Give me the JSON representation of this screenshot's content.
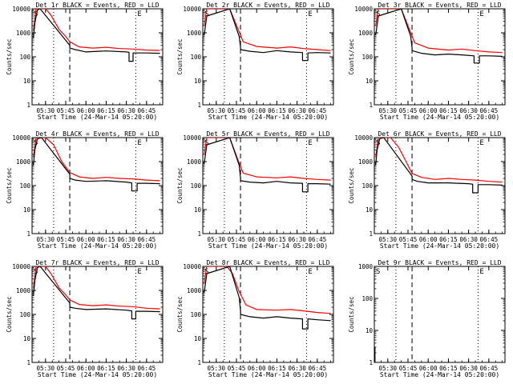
{
  "chart_data": [
    {
      "type": "line",
      "title": "Det 1r BLACK = Events, RED = LLD",
      "xlabel": "Start Time (24-Mar-14 05:20:00)",
      "ylabel": "Counts/sec",
      "yscale": "log",
      "ylim": [
        1,
        10000
      ],
      "xlim": [
        "05:20",
        "06:57"
      ],
      "grid": false,
      "xticks": [
        "05:30",
        "05:45",
        "06:00",
        "06:15",
        "06:30",
        "06:45"
      ],
      "yticks": [
        "1",
        "10",
        "100",
        "1000",
        "10000"
      ],
      "annotations": [
        "S",
        "E"
      ],
      "marker_lines": {
        "dotted": [
          "05:36",
          "06:37"
        ],
        "dashed": [
          "05:48"
        ]
      },
      "series": [
        {
          "color": "#ff0000",
          "x": [
            "05:21",
            "05:23",
            "05:26",
            "05:30",
            "05:34",
            "05:40",
            "05:45",
            "05:48",
            "05:55",
            "06:05",
            "06:15",
            "06:25",
            "06:35",
            "06:45",
            "06:55"
          ],
          "values": [
            1200,
            10000,
            10000,
            10000,
            5500,
            1400,
            700,
            420,
            260,
            230,
            250,
            220,
            210,
            190,
            185
          ]
        },
        {
          "color": "#000000",
          "x": [
            "05:21",
            "05:22",
            "05:24",
            "05:26",
            "05:48",
            "05:48",
            "05:52",
            "06:00",
            "06:15",
            "06:30",
            "06:32",
            "06:32",
            "06:35",
            "06:35",
            "06:45",
            "06:55"
          ],
          "values": [
            600,
            2500,
            9000,
            10000,
            300,
            230,
            200,
            160,
            175,
            160,
            155,
            65,
            65,
            145,
            145,
            140
          ]
        }
      ]
    },
    {
      "type": "line",
      "title": "Det 2r BLACK = Events, RED = LLD",
      "xlabel": "Start Time (24-Mar-14 05:20:00)",
      "ylabel": "Counts/sec",
      "yscale": "log",
      "ylim": [
        1,
        10000
      ],
      "xlim": [
        "05:20",
        "06:57"
      ],
      "grid": false,
      "xticks": [
        "05:30",
        "05:45",
        "06:00",
        "06:15",
        "06:30",
        "06:45"
      ],
      "yticks": [
        "1",
        "10",
        "100",
        "1000",
        "10000"
      ],
      "annotations": [
        "S",
        "E"
      ],
      "marker_lines": {
        "dotted": [
          "05:36",
          "06:37"
        ],
        "dashed": [
          "05:48"
        ]
      },
      "series": [
        {
          "color": "#ff0000",
          "x": [
            "05:21",
            "05:23",
            "05:40",
            "05:46",
            "05:50",
            "06:00",
            "06:15",
            "06:25",
            "06:35",
            "06:45",
            "06:55"
          ],
          "values": [
            2000,
            10000,
            10000,
            1500,
            420,
            270,
            230,
            260,
            220,
            200,
            180
          ]
        },
        {
          "color": "#000000",
          "x": [
            "05:21",
            "05:23",
            "05:40",
            "05:47",
            "05:48",
            "05:48",
            "05:55",
            "06:05",
            "06:15",
            "06:25",
            "06:34",
            "06:34",
            "06:38",
            "06:38",
            "06:45",
            "06:55"
          ],
          "values": [
            800,
            5000,
            10000,
            700,
            250,
            200,
            170,
            150,
            180,
            160,
            150,
            70,
            70,
            145,
            150,
            145
          ]
        }
      ]
    },
    {
      "type": "line",
      "title": "Det 3r BLACK = Events, RED = LLD",
      "xlabel": "Start Time (24-Mar-14 05:20:00)",
      "ylabel": "Counts/sec",
      "yscale": "log",
      "ylim": [
        1,
        10000
      ],
      "xlim": [
        "05:20",
        "06:57"
      ],
      "grid": false,
      "xticks": [
        "05:30",
        "05:45",
        "06:00",
        "06:15",
        "06:30",
        "06:45"
      ],
      "yticks": [
        "1",
        "10",
        "100",
        "1000",
        "10000"
      ],
      "annotations": [
        "S",
        "E"
      ],
      "marker_lines": {
        "dotted": [
          "05:36",
          "06:37"
        ],
        "dashed": [
          "05:48"
        ]
      },
      "series": [
        {
          "color": "#ff0000",
          "x": [
            "05:21",
            "05:23",
            "05:40",
            "05:46",
            "05:50",
            "06:00",
            "06:15",
            "06:25",
            "06:35",
            "06:45",
            "06:55"
          ],
          "values": [
            2000,
            10000,
            10000,
            1400,
            380,
            230,
            190,
            210,
            180,
            160,
            150
          ]
        },
        {
          "color": "#000000",
          "x": [
            "05:21",
            "05:23",
            "05:40",
            "05:47",
            "05:48",
            "05:48",
            "05:55",
            "06:05",
            "06:15",
            "06:25",
            "06:34",
            "06:34",
            "06:38",
            "06:38",
            "06:45",
            "06:55"
          ],
          "values": [
            800,
            5000,
            10000,
            700,
            230,
            180,
            140,
            120,
            130,
            120,
            110,
            55,
            55,
            110,
            110,
            105
          ]
        }
      ]
    },
    {
      "type": "line",
      "title": "Det 4r BLACK = Events, RED = LLD",
      "xlabel": "Start Time (24-Mar-14 05:20:00)",
      "ylabel": "Counts/sec",
      "yscale": "log",
      "ylim": [
        1,
        10000
      ],
      "xlim": [
        "05:20",
        "06:57"
      ],
      "grid": false,
      "xticks": [
        "05:30",
        "05:45",
        "06:00",
        "06:15",
        "06:30",
        "06:45"
      ],
      "yticks": [
        "1",
        "10",
        "100",
        "1000",
        "10000"
      ],
      "annotations": [
        "S",
        "E"
      ],
      "marker_lines": {
        "dotted": [
          "05:36",
          "06:37"
        ],
        "dashed": [
          "05:48"
        ]
      },
      "series": [
        {
          "color": "#ff0000",
          "x": [
            "05:21",
            "05:23",
            "05:30",
            "05:36",
            "05:42",
            "05:48",
            "05:55",
            "06:05",
            "06:15",
            "06:25",
            "06:35",
            "06:45",
            "06:55"
          ],
          "values": [
            1500,
            10000,
            10000,
            5000,
            1000,
            350,
            230,
            200,
            220,
            200,
            190,
            170,
            160
          ]
        },
        {
          "color": "#000000",
          "x": [
            "05:21",
            "05:22",
            "05:24",
            "05:27",
            "05:48",
            "05:48",
            "05:52",
            "06:00",
            "06:15",
            "06:30",
            "06:34",
            "06:34",
            "06:38",
            "06:38",
            "06:45",
            "06:55"
          ],
          "values": [
            700,
            3000,
            9000,
            10000,
            300,
            200,
            170,
            150,
            160,
            140,
            130,
            60,
            60,
            125,
            125,
            120
          ]
        }
      ]
    },
    {
      "type": "line",
      "title": "Det 5r BLACK = Events, RED = LLD",
      "xlabel": "Start Time (24-Mar-14 05:20:00)",
      "ylabel": "Counts/sec",
      "yscale": "log",
      "ylim": [
        1,
        10000
      ],
      "xlim": [
        "05:20",
        "06:57"
      ],
      "grid": false,
      "xticks": [
        "05:30",
        "05:45",
        "06:00",
        "06:15",
        "06:30",
        "06:45"
      ],
      "yticks": [
        "1",
        "10",
        "100",
        "1000",
        "10000"
      ],
      "annotations": [
        "S",
        "E"
      ],
      "marker_lines": {
        "dotted": [
          "05:36",
          "06:37"
        ],
        "dashed": [
          "05:48"
        ]
      },
      "series": [
        {
          "color": "#ff0000",
          "x": [
            "05:21",
            "05:23",
            "05:40",
            "05:46",
            "05:50",
            "06:00",
            "06:15",
            "06:25",
            "06:35",
            "06:45",
            "06:55"
          ],
          "values": [
            2000,
            10000,
            10000,
            1200,
            330,
            230,
            210,
            230,
            200,
            180,
            170
          ]
        },
        {
          "color": "#000000",
          "x": [
            "05:21",
            "05:23",
            "05:40",
            "05:47",
            "05:48",
            "05:48",
            "05:55",
            "06:05",
            "06:15",
            "06:25",
            "06:34",
            "06:34",
            "06:38",
            "06:38",
            "06:45",
            "06:55"
          ],
          "values": [
            800,
            5000,
            10000,
            700,
            200,
            160,
            140,
            130,
            150,
            130,
            125,
            55,
            55,
            120,
            120,
            115
          ]
        }
      ]
    },
    {
      "type": "line",
      "title": "Det 6r BLACK = Events, RED = LLD",
      "xlabel": "Start Time (24-Mar-14 05:20:00)",
      "ylabel": "Counts/sec",
      "yscale": "log",
      "ylim": [
        1,
        10000
      ],
      "xlim": [
        "05:20",
        "06:57"
      ],
      "grid": false,
      "xticks": [
        "05:30",
        "05:45",
        "06:00",
        "06:15",
        "06:30",
        "06:45"
      ],
      "yticks": [
        "1",
        "10",
        "100",
        "1000",
        "10000"
      ],
      "annotations": [
        "S",
        "E"
      ],
      "marker_lines": {
        "dotted": [
          "05:36",
          "06:37"
        ],
        "dashed": [
          "05:48"
        ]
      },
      "series": [
        {
          "color": "#ff0000",
          "x": [
            "05:21",
            "05:23",
            "05:32",
            "05:38",
            "05:44",
            "05:48",
            "05:55",
            "06:05",
            "06:15",
            "06:25",
            "06:35",
            "06:45",
            "06:55"
          ],
          "values": [
            1500,
            10000,
            10000,
            4000,
            900,
            320,
            220,
            180,
            200,
            180,
            170,
            150,
            140
          ]
        },
        {
          "color": "#000000",
          "x": [
            "05:21",
            "05:22",
            "05:24",
            "05:27",
            "05:48",
            "05:48",
            "05:52",
            "06:00",
            "06:15",
            "06:30",
            "06:33",
            "06:33",
            "06:37",
            "06:37",
            "06:45",
            "06:55"
          ],
          "values": [
            700,
            3000,
            9000,
            10000,
            250,
            180,
            150,
            130,
            130,
            120,
            115,
            50,
            50,
            110,
            110,
            105
          ]
        }
      ]
    },
    {
      "type": "line",
      "title": "Det 7r BLACK = Events, RED = LLD",
      "xlabel": "Start Time (24-Mar-14 05:20:00)",
      "ylabel": "Counts/sec",
      "yscale": "log",
      "ylim": [
        1,
        10000
      ],
      "xlim": [
        "05:20",
        "06:57"
      ],
      "grid": false,
      "xticks": [
        "05:30",
        "05:45",
        "06:00",
        "06:15",
        "06:30",
        "06:45"
      ],
      "yticks": [
        "1",
        "10",
        "100",
        "1000",
        "10000"
      ],
      "annotations": [
        "S",
        "E"
      ],
      "marker_lines": {
        "dotted": [
          "05:36",
          "06:37"
        ],
        "dashed": [
          "05:48"
        ]
      },
      "series": [
        {
          "color": "#ff0000",
          "x": [
            "05:21",
            "05:23",
            "05:26",
            "05:30",
            "05:34",
            "05:40",
            "05:45",
            "05:48",
            "05:55",
            "06:05",
            "06:15",
            "06:25",
            "06:35",
            "06:45",
            "06:55"
          ],
          "values": [
            1200,
            10000,
            10000,
            10000,
            5000,
            1300,
            650,
            400,
            260,
            230,
            250,
            220,
            210,
            180,
            170
          ]
        },
        {
          "color": "#000000",
          "x": [
            "05:21",
            "05:22",
            "05:24",
            "05:26",
            "05:48",
            "05:48",
            "05:52",
            "06:00",
            "06:15",
            "06:30",
            "06:34",
            "06:34",
            "06:37",
            "06:37",
            "06:45",
            "06:55"
          ],
          "values": [
            600,
            2500,
            9000,
            10000,
            300,
            200,
            180,
            160,
            170,
            150,
            140,
            65,
            65,
            135,
            135,
            130
          ]
        }
      ]
    },
    {
      "type": "line",
      "title": "Det 8r BLACK = Events, RED = LLD",
      "xlabel": "Start Time (24-Mar-14 05:20:00)",
      "ylabel": "Counts/sec",
      "yscale": "log",
      "ylim": [
        1,
        10000
      ],
      "xlim": [
        "05:20",
        "06:57"
      ],
      "grid": false,
      "xticks": [
        "05:30",
        "05:45",
        "06:00",
        "06:15",
        "06:30",
        "06:45"
      ],
      "yticks": [
        "1",
        "10",
        "100",
        "1000",
        "10000"
      ],
      "annotations": [
        "S",
        "E"
      ],
      "marker_lines": {
        "dotted": [
          "05:36",
          "06:37"
        ],
        "dashed": [
          "05:48"
        ]
      },
      "series": [
        {
          "color": "#ff0000",
          "x": [
            "05:21",
            "05:23",
            "05:38",
            "05:42",
            "05:47",
            "05:52",
            "06:00",
            "06:15",
            "06:25",
            "06:35",
            "06:45",
            "06:55"
          ],
          "values": [
            2000,
            10000,
            10000,
            5000,
            900,
            250,
            160,
            150,
            160,
            140,
            120,
            110
          ]
        },
        {
          "color": "#000000",
          "x": [
            "05:21",
            "05:23",
            "05:40",
            "05:47",
            "05:48",
            "05:48",
            "05:55",
            "06:05",
            "06:15",
            "06:25",
            "06:34",
            "06:34",
            "06:38",
            "06:38",
            "06:45",
            "06:55"
          ],
          "values": [
            800,
            5000,
            10000,
            500,
            140,
            100,
            80,
            70,
            80,
            70,
            65,
            25,
            25,
            65,
            60,
            55
          ]
        }
      ]
    },
    {
      "type": "line",
      "title": "Det 9r BLACK = Events, RED = LLD",
      "xlabel": "Start Time (24-Mar-14 05:20:00)",
      "ylabel": "Counts/sec",
      "yscale": "log",
      "ylim": [
        1,
        1000
      ],
      "xlim": [
        "05:20",
        "06:57"
      ],
      "grid": false,
      "xticks": [
        "05:30",
        "05:45",
        "06:00",
        "06:15",
        "06:30",
        "06:45"
      ],
      "yticks": [
        "1",
        "10",
        "100",
        "1000"
      ],
      "annotations": [
        "S",
        "E"
      ],
      "marker_lines": {
        "dotted": [
          "05:36",
          "06:37"
        ],
        "dashed": [
          "05:48"
        ]
      },
      "series": [
        {
          "color": "#000000",
          "x": [
            "05:20.5",
            "05:20.5"
          ],
          "values": [
            1,
            3
          ]
        }
      ]
    }
  ]
}
